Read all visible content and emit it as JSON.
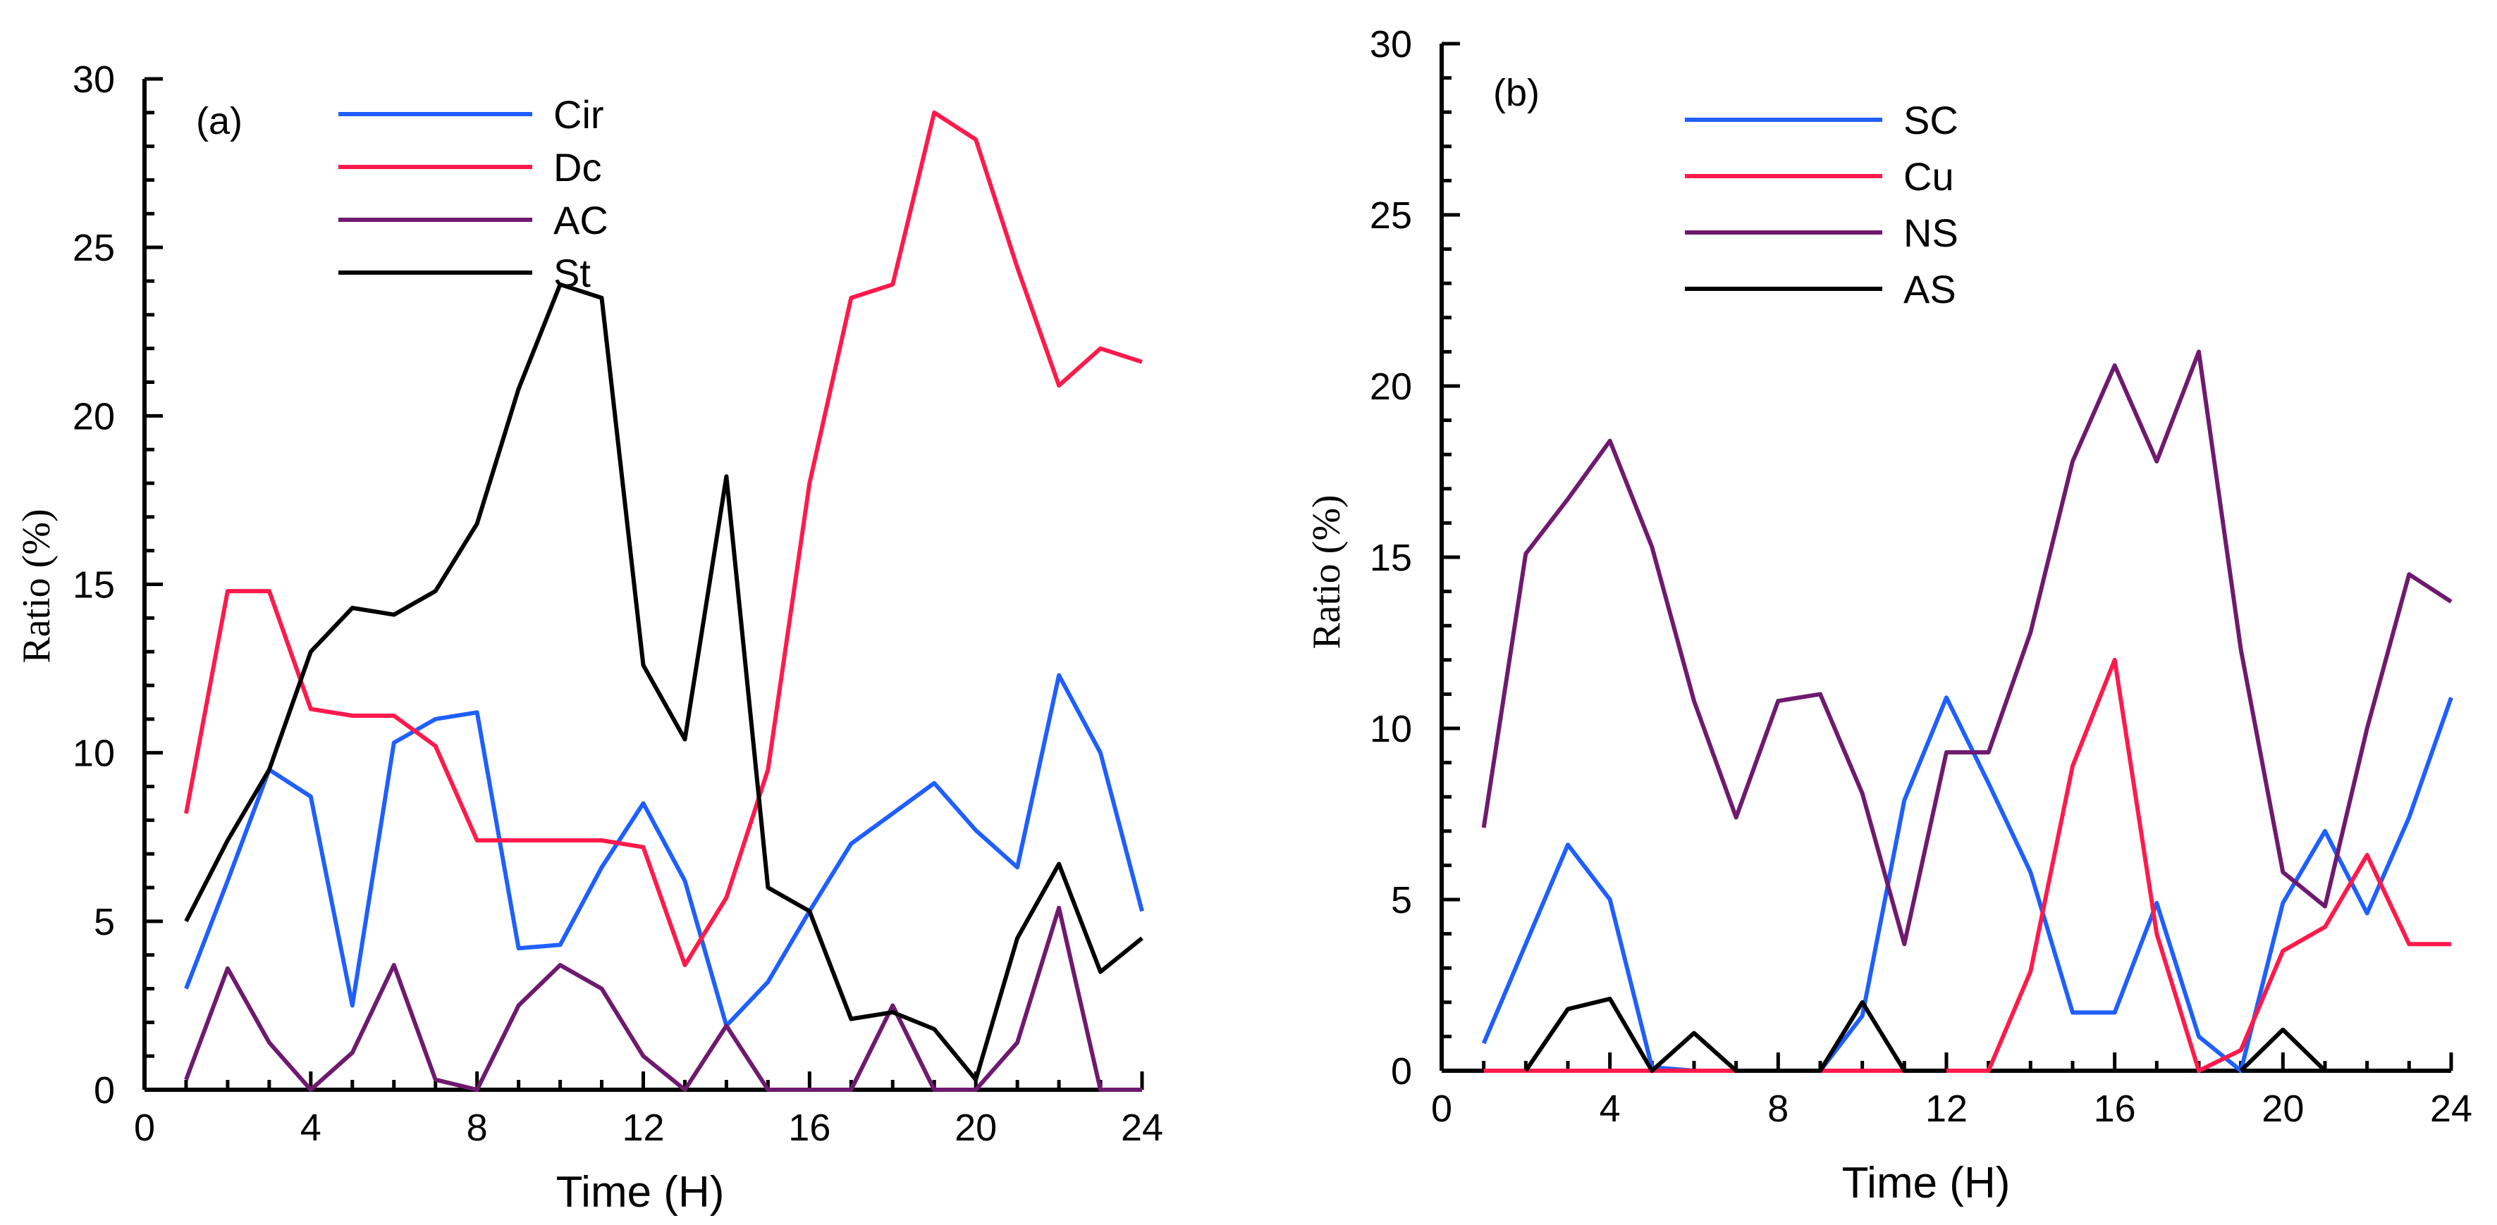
{
  "chart_data": [
    {
      "type": "line",
      "panel_label": "(a)",
      "xlabel": "Time (H)",
      "ylabel": "Ratio (%)",
      "xlim": [
        0,
        24
      ],
      "ylim": [
        0,
        30
      ],
      "xticks": [
        0,
        4,
        8,
        12,
        16,
        20,
        24
      ],
      "yticks": [
        0,
        5,
        10,
        15,
        20,
        25,
        30
      ],
      "x": [
        1,
        2,
        3,
        4,
        5,
        6,
        7,
        8,
        9,
        10,
        11,
        12,
        13,
        14,
        15,
        16,
        17,
        18,
        19,
        20,
        21,
        22,
        23,
        24
      ],
      "legend_position": "top-left",
      "series": [
        {
          "name": "Cir",
          "color": "#1f5fff",
          "values": [
            3.0,
            6.2,
            9.5,
            8.7,
            2.5,
            10.3,
            11.0,
            11.2,
            4.2,
            4.3,
            6.6,
            8.5,
            6.2,
            1.9,
            3.2,
            5.3,
            7.3,
            8.2,
            9.1,
            7.7,
            6.6,
            12.3,
            10.0,
            5.3
          ]
        },
        {
          "name": "Dc",
          "color": "#ff1a4b",
          "values": [
            8.2,
            14.8,
            14.8,
            11.3,
            11.1,
            11.1,
            10.2,
            7.4,
            7.4,
            7.4,
            7.4,
            7.2,
            3.7,
            5.7,
            9.5,
            18.0,
            23.5,
            23.9,
            29.0,
            28.2,
            24.4,
            20.9,
            22.0,
            21.6
          ]
        },
        {
          "name": "AC",
          "color": "#6e1a6e",
          "values": [
            0.3,
            3.6,
            1.4,
            0.0,
            1.1,
            3.7,
            0.3,
            0.0,
            2.5,
            3.7,
            3.0,
            1.0,
            0.0,
            1.9,
            0.0,
            0.0,
            0.0,
            2.5,
            0.0,
            0.0,
            1.4,
            5.4,
            0.0,
            0.0
          ]
        },
        {
          "name": "St",
          "color": "#000000",
          "values": [
            5.0,
            7.4,
            9.5,
            13.0,
            14.3,
            14.1,
            14.8,
            16.8,
            20.8,
            23.9,
            23.5,
            12.6,
            10.4,
            18.2,
            6.0,
            5.3,
            2.1,
            2.3,
            1.8,
            0.3,
            4.5,
            6.7,
            3.5,
            4.5
          ]
        }
      ]
    },
    {
      "type": "line",
      "panel_label": "(b)",
      "xlabel": "Time (H)",
      "ylabel": "Ratio (%)",
      "xlim": [
        0,
        24
      ],
      "ylim": [
        0,
        30
      ],
      "xticks": [
        0,
        4,
        8,
        12,
        16,
        20,
        24
      ],
      "yticks": [
        0,
        5,
        10,
        15,
        20,
        25,
        30
      ],
      "x": [
        1,
        2,
        3,
        4,
        5,
        6,
        7,
        8,
        9,
        10,
        11,
        12,
        13,
        14,
        15,
        16,
        17,
        18,
        19,
        20,
        21,
        22,
        23,
        24
      ],
      "legend_position": "top-left",
      "series": [
        {
          "name": "SC",
          "color": "#1f5fff",
          "values": [
            0.8,
            3.7,
            6.6,
            5.0,
            0.1,
            0.0,
            0.0,
            0.0,
            0.0,
            1.6,
            7.9,
            10.9,
            8.4,
            5.8,
            1.7,
            1.7,
            4.9,
            1.0,
            0.0,
            4.9,
            7.0,
            4.6,
            7.4,
            10.9
          ]
        },
        {
          "name": "Cu",
          "color": "#ff1a4b",
          "values": [
            0.0,
            0.0,
            0.0,
            0.0,
            0.0,
            0.0,
            0.0,
            0.0,
            0.0,
            0.0,
            0.0,
            0.0,
            0.0,
            2.9,
            8.9,
            12.0,
            4.0,
            0.0,
            0.6,
            3.5,
            4.2,
            6.3,
            3.7,
            3.7
          ]
        },
        {
          "name": "NS",
          "color": "#6e1a6e",
          "values": [
            7.1,
            15.1,
            16.7,
            18.4,
            15.3,
            10.8,
            7.4,
            10.8,
            11.0,
            8.1,
            3.7,
            9.3,
            9.3,
            12.8,
            17.8,
            20.6,
            17.8,
            21.0,
            12.3,
            5.8,
            4.8,
            10.0,
            14.5,
            13.7
          ]
        },
        {
          "name": "AS",
          "color": "#000000",
          "values": [
            null,
            0.0,
            1.8,
            2.1,
            0.0,
            1.1,
            0.0,
            0.0,
            0.0,
            2.0,
            0.0,
            0.0,
            null,
            null,
            null,
            null,
            null,
            null,
            0.0,
            1.2,
            0.0,
            null,
            null,
            null
          ]
        }
      ]
    }
  ]
}
